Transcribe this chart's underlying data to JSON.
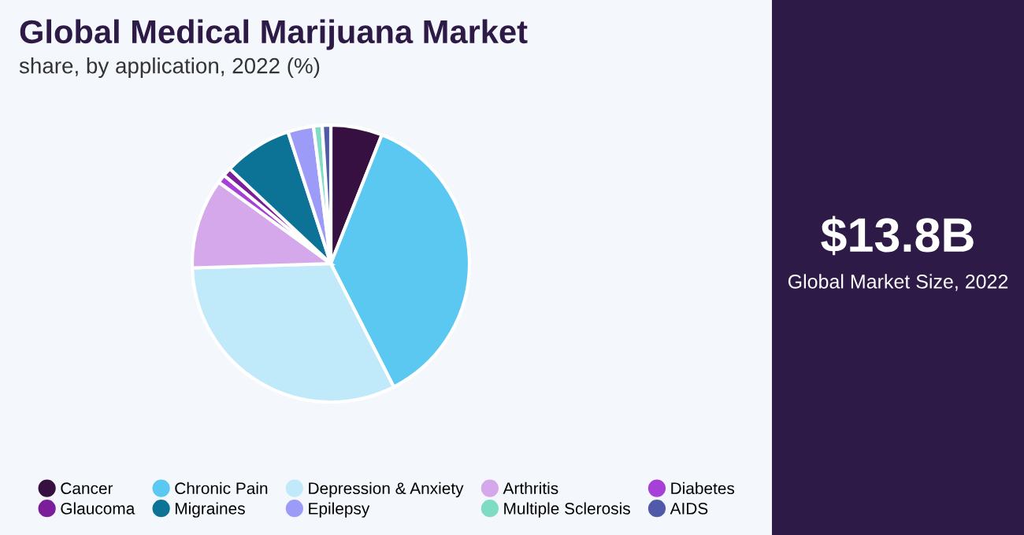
{
  "chart_data": {
    "type": "pie",
    "title": "Global Medical Marijuana Market",
    "subtitle": "share, by application, 2022 (%)",
    "categories": [
      "Cancer",
      "Chronic Pain",
      "Depression & Anxiety",
      "Arthritis",
      "Diabetes",
      "Glaucoma",
      "Migraines",
      "Epilepsy",
      "Multiple Sclerosis",
      "AIDS"
    ],
    "values": [
      6,
      36.5,
      32,
      10.5,
      1,
      1,
      8,
      3,
      1,
      1
    ],
    "colors": [
      "#361041",
      "#5bc8f2",
      "#c0e9f9",
      "#d4a8ea",
      "#a640d8",
      "#7a1e9a",
      "#0c7396",
      "#9c9cf8",
      "#7fdcc4",
      "#515aa8"
    ],
    "legend": "bottom",
    "annotations": [
      "$13.8B",
      "Global Market Size, 2022"
    ]
  }
}
